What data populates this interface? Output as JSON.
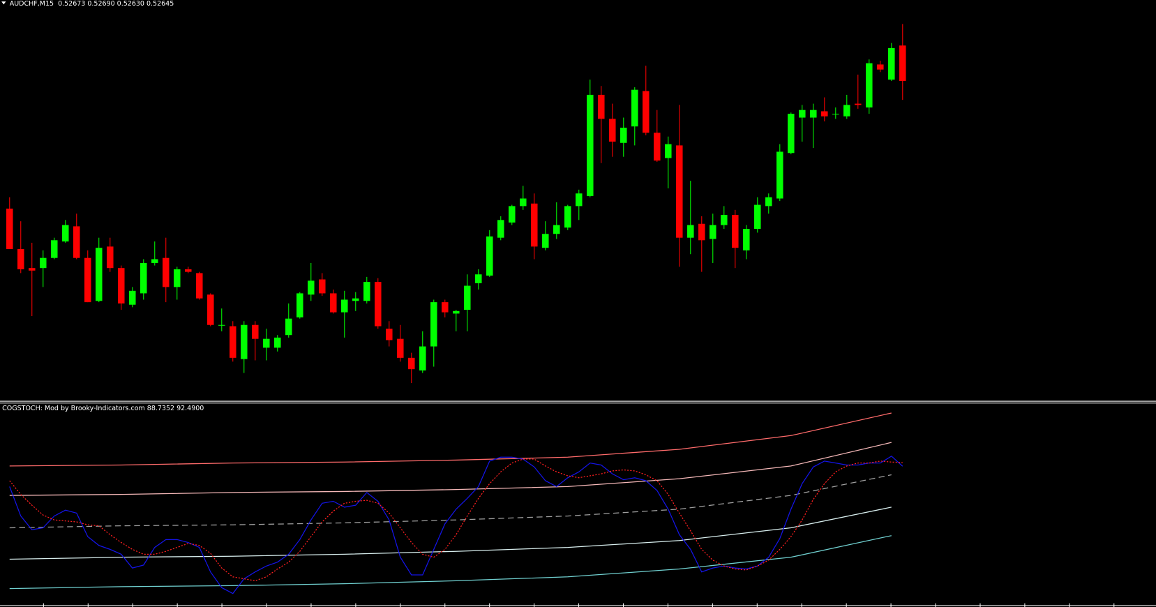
{
  "chart_data": [
    {
      "type": "candlestick",
      "title": "AUDCHF,M15  0.52673 0.52690 0.52630 0.52645",
      "up_color": "#00ff00",
      "down_color": "#ff0000",
      "xlim": [
        -0.86,
        102.7
      ],
      "ylim": [
        0.52394,
        0.52709
      ],
      "x": [
        0,
        1,
        2,
        3,
        4,
        5,
        6,
        7,
        8,
        9,
        10,
        11,
        12,
        13,
        14,
        15,
        16,
        17,
        18,
        19,
        20,
        21,
        22,
        23,
        24,
        25,
        26,
        27,
        28,
        29,
        30,
        31,
        32,
        33,
        34,
        35,
        36,
        37,
        38,
        39,
        40,
        41,
        42,
        43,
        44,
        45,
        46,
        47,
        48,
        49,
        50,
        51,
        52,
        53,
        54,
        55,
        56,
        57,
        58,
        59,
        60,
        61,
        62,
        63,
        64,
        65,
        66,
        67,
        68,
        69,
        70,
        71,
        72,
        73,
        74,
        75,
        76,
        77,
        78,
        79,
        80
      ],
      "open": [
        0.52544,
        0.52512,
        0.52497,
        0.52497,
        0.52505,
        0.52518,
        0.5253,
        0.52505,
        0.52471,
        0.52514,
        0.52497,
        0.52468,
        0.52477,
        0.52501,
        0.52505,
        0.52482,
        0.52496,
        0.52493,
        0.52476,
        0.52452,
        0.52451,
        0.52425,
        0.52452,
        0.52434,
        0.52434,
        0.52444,
        0.52458,
        0.52476,
        0.52488,
        0.52477,
        0.52462,
        0.52471,
        0.52471,
        0.52486,
        0.52449,
        0.52441,
        0.52426,
        0.52416,
        0.52435,
        0.5247,
        0.52461,
        0.52464,
        0.52485,
        0.52491,
        0.52521,
        0.52533,
        0.52546,
        0.52548,
        0.52513,
        0.52524,
        0.52529,
        0.52546,
        0.52554,
        0.52634,
        0.52615,
        0.52596,
        0.52609,
        0.52637,
        0.52604,
        0.52584,
        0.52594,
        0.52521,
        0.52532,
        0.5252,
        0.52531,
        0.52539,
        0.52511,
        0.52528,
        0.52546,
        0.52552,
        0.52588,
        0.52616,
        0.52616,
        0.52621,
        0.52619,
        0.52617,
        0.52627,
        0.52624,
        0.52658,
        0.52646,
        0.52673
      ],
      "high": [
        0.52553,
        0.52534,
        0.52517,
        0.52511,
        0.52521,
        0.52535,
        0.5254,
        0.52511,
        0.52521,
        0.52521,
        0.52499,
        0.52482,
        0.52504,
        0.52518,
        0.52521,
        0.52498,
        0.52498,
        0.52494,
        0.52477,
        0.52465,
        0.52455,
        0.52455,
        0.52455,
        0.52449,
        0.52444,
        0.52469,
        0.52478,
        0.52501,
        0.52493,
        0.5248,
        0.52479,
        0.52478,
        0.5249,
        0.52489,
        0.52455,
        0.52452,
        0.5243,
        0.52447,
        0.52472,
        0.52472,
        0.52464,
        0.52492,
        0.52496,
        0.52527,
        0.52538,
        0.52547,
        0.52562,
        0.52556,
        0.52534,
        0.52549,
        0.52547,
        0.52559,
        0.52646,
        0.52641,
        0.52627,
        0.52616,
        0.5264,
        0.52657,
        0.52622,
        0.52601,
        0.52626,
        0.52566,
        0.52538,
        0.5254,
        0.52546,
        0.52543,
        0.52531,
        0.52553,
        0.52556,
        0.52595,
        0.5262,
        0.52626,
        0.52627,
        0.52632,
        0.52624,
        0.52634,
        0.5265,
        0.52662,
        0.52661,
        0.52675,
        0.5269
      ],
      "low": [
        0.52512,
        0.52493,
        0.52459,
        0.52482,
        0.52504,
        0.52517,
        0.52504,
        0.5247,
        0.5247,
        0.52494,
        0.52464,
        0.52466,
        0.52472,
        0.52499,
        0.5247,
        0.52472,
        0.52493,
        0.52472,
        0.52451,
        0.52447,
        0.52423,
        0.52414,
        0.52424,
        0.52424,
        0.52431,
        0.52442,
        0.52457,
        0.52471,
        0.52475,
        0.52461,
        0.52442,
        0.52463,
        0.52469,
        0.52449,
        0.52435,
        0.52423,
        0.52406,
        0.52414,
        0.52419,
        0.52458,
        0.52447,
        0.52447,
        0.5248,
        0.5249,
        0.52519,
        0.52531,
        0.52543,
        0.52504,
        0.52511,
        0.5252,
        0.52527,
        0.52535,
        0.52553,
        0.5258,
        0.52585,
        0.52585,
        0.52594,
        0.52602,
        0.52581,
        0.5256,
        0.52498,
        0.52508,
        0.52494,
        0.52501,
        0.52528,
        0.52497,
        0.52504,
        0.52525,
        0.5254,
        0.5255,
        0.52587,
        0.52597,
        0.52592,
        0.52613,
        0.52615,
        0.52615,
        0.52623,
        0.52619,
        0.52652,
        0.52645,
        0.5263
      ],
      "close": [
        0.52512,
        0.52496,
        0.52495,
        0.52505,
        0.52519,
        0.52531,
        0.52505,
        0.5247,
        0.52513,
        0.52497,
        0.52469,
        0.52479,
        0.52501,
        0.52504,
        0.52482,
        0.52496,
        0.52494,
        0.52473,
        0.52452,
        0.52452,
        0.52426,
        0.52452,
        0.52441,
        0.52441,
        0.52442,
        0.52457,
        0.52477,
        0.52487,
        0.52477,
        0.52462,
        0.52472,
        0.52473,
        0.52486,
        0.52451,
        0.5244,
        0.52426,
        0.52417,
        0.52435,
        0.5247,
        0.52462,
        0.52463,
        0.52483,
        0.52492,
        0.52522,
        0.52535,
        0.52546,
        0.52552,
        0.52514,
        0.52524,
        0.52531,
        0.52546,
        0.52556,
        0.52634,
        0.52615,
        0.52597,
        0.52608,
        0.52638,
        0.52604,
        0.52582,
        0.52595,
        0.52521,
        0.52531,
        0.52519,
        0.52531,
        0.52539,
        0.52513,
        0.52528,
        0.52547,
        0.52553,
        0.52589,
        0.52619,
        0.52622,
        0.52622,
        0.52617,
        0.52619,
        0.52626,
        0.52626,
        0.52659,
        0.52654,
        0.52671,
        0.52645
      ]
    },
    {
      "type": "line",
      "title": "COGSTOCH: Mod by Brooky-Indicators.com 88.7352 92.4900",
      "xlim": [
        -0.86,
        102.7
      ],
      "ylim": [
        -54,
        152
      ],
      "x": [
        0,
        1,
        2,
        3,
        4,
        5,
        6,
        7,
        8,
        9,
        10,
        11,
        12,
        13,
        14,
        15,
        16,
        17,
        18,
        19,
        20,
        21,
        22,
        23,
        24,
        25,
        26,
        27,
        28,
        29,
        30,
        31,
        32,
        33,
        34,
        35,
        36,
        37,
        38,
        39,
        40,
        41,
        42,
        43,
        44,
        45,
        46,
        47,
        48,
        49,
        50,
        51,
        52,
        53,
        54,
        55,
        56,
        57,
        58,
        59,
        60,
        61,
        62,
        63,
        64,
        65,
        66,
        67,
        68,
        69,
        70,
        71,
        72,
        73,
        74,
        75,
        76,
        77,
        78,
        79,
        80
      ],
      "series": [
        {
          "color": "#ff6b6b",
          "x": [
            0,
            10,
            20,
            30,
            40,
            50,
            60,
            70,
            79
          ],
          "values": [
            89,
            90,
            92,
            93,
            95,
            98,
            106,
            120,
            143
          ]
        },
        {
          "color": "#f5b8b8",
          "x": [
            0,
            10,
            20,
            30,
            40,
            50,
            60,
            70,
            79
          ],
          "values": [
            59,
            60,
            62,
            63,
            65,
            68,
            76,
            89,
            113
          ]
        },
        {
          "color": "#a0a0a0",
          "dash": "8,5",
          "x": [
            0,
            10,
            20,
            30,
            40,
            50,
            60,
            70,
            79
          ],
          "values": [
            26,
            28,
            29,
            31,
            34,
            38,
            45,
            59,
            80
          ]
        },
        {
          "color": "#d8eeee",
          "x": [
            0,
            10,
            20,
            30,
            40,
            50,
            60,
            70,
            79
          ],
          "values": [
            -6,
            -4,
            -3,
            -1,
            2,
            6,
            13,
            26,
            47
          ]
        },
        {
          "color": "#70d0d0",
          "x": [
            0,
            10,
            20,
            30,
            40,
            50,
            60,
            70,
            79
          ],
          "values": [
            -36,
            -34,
            -33,
            -31,
            -28,
            -24,
            -16,
            -4,
            18
          ]
        },
        {
          "color": "#1414e6",
          "values": [
            68,
            38,
            24,
            26,
            38,
            44,
            41,
            17,
            8,
            4,
            -1,
            -15,
            -12,
            6,
            14,
            14,
            11,
            6,
            -19,
            -35,
            -41,
            -26,
            -19,
            -13,
            -9,
            -1,
            14,
            34,
            51,
            53,
            47,
            49,
            62,
            53,
            34,
            -4,
            -22,
            -22,
            4,
            30,
            45,
            56,
            68,
            94,
            98,
            98,
            96,
            88,
            74,
            68,
            77,
            83,
            92,
            90,
            81,
            75,
            77,
            74,
            64,
            45,
            19,
            4,
            -19,
            -15,
            -13,
            -15,
            -16,
            -13,
            -4,
            15,
            45,
            71,
            88,
            94,
            92,
            90,
            90,
            92,
            92,
            99,
            88.7352
          ]
        },
        {
          "color": "#ff2020",
          "dash": "2,2",
          "values": [
            74,
            60,
            49,
            39,
            34,
            33,
            32,
            29,
            28,
            19,
            11,
            4,
            -1,
            -1,
            2,
            6,
            10,
            8,
            0,
            -15,
            -24,
            -26,
            -28,
            -24,
            -16,
            -9,
            2,
            17,
            32,
            43,
            51,
            53,
            54,
            51,
            41,
            26,
            11,
            -1,
            -4,
            4,
            19,
            38,
            56,
            71,
            83,
            92,
            96,
            96,
            89,
            83,
            79,
            77,
            79,
            81,
            84,
            85,
            84,
            80,
            74,
            60,
            41,
            23,
            4,
            -7,
            -13,
            -16,
            -17,
            -13,
            -7,
            4,
            17,
            34,
            55,
            71,
            83,
            89,
            92,
            92,
            94,
            93,
            92.49
          ]
        }
      ]
    }
  ]
}
